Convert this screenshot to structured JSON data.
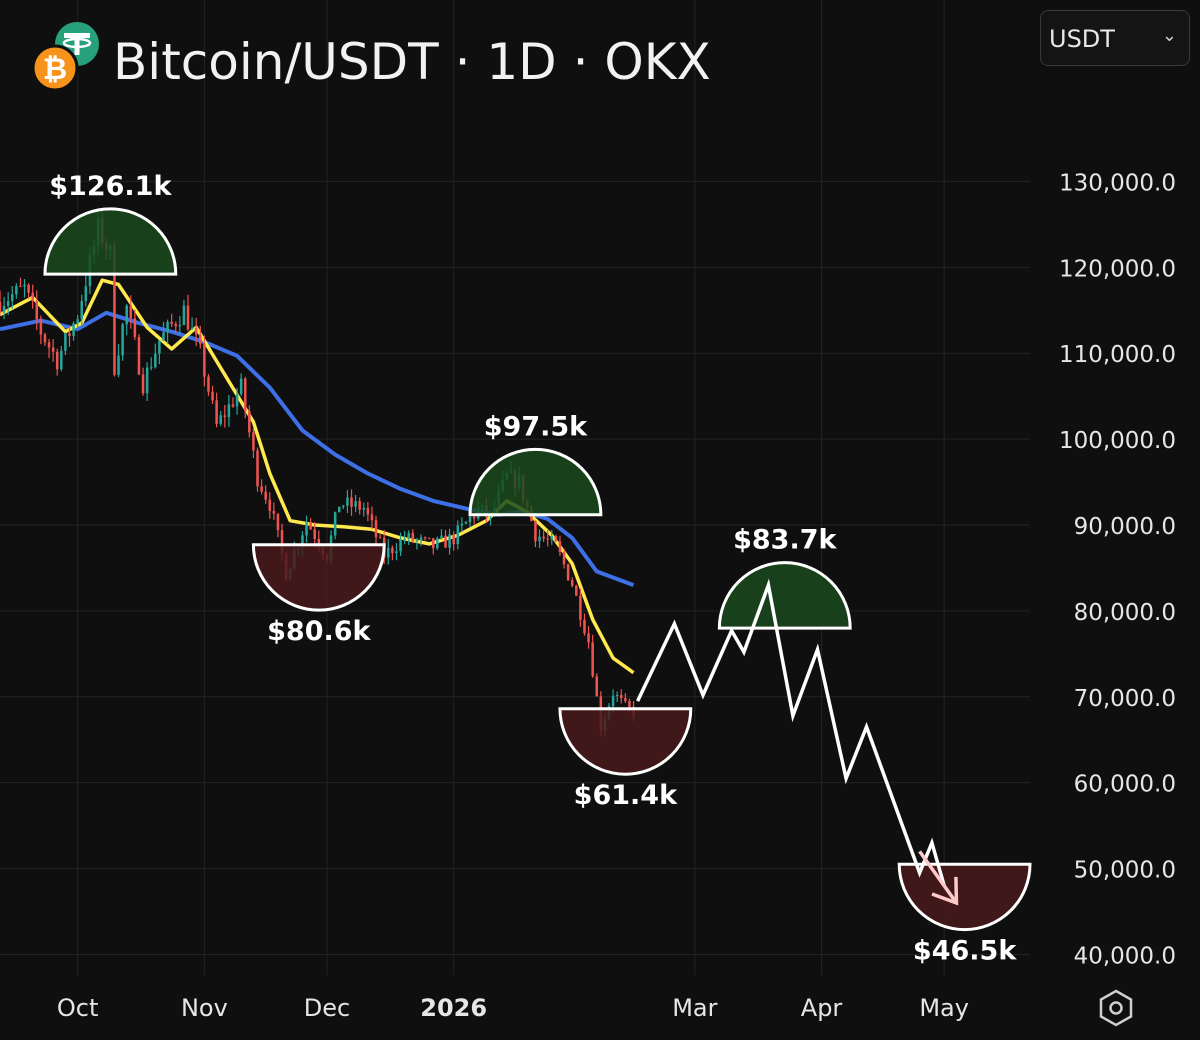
{
  "header": {
    "title": "Bitcoin/USDT · 1D · OKX",
    "currency_selector": {
      "value": "USDT"
    }
  },
  "chart_data": {
    "type": "candlestick",
    "title": "Bitcoin/USDT · 1D · OKX",
    "yticks": [
      "130,000.0",
      "120,000.0",
      "110,000.0",
      "100,000.0",
      "90,000.0",
      "80,000.0",
      "70,000.0",
      "60,000.0",
      "50,000.0",
      "40,000.0"
    ],
    "ytick_values": [
      130000,
      120000,
      110000,
      100000,
      90000,
      80000,
      70000,
      60000,
      50000,
      40000
    ],
    "xticks": [
      {
        "label": "Oct",
        "date": "2025-10-01",
        "bold": false
      },
      {
        "label": "Nov",
        "date": "2025-11-01",
        "bold": false
      },
      {
        "label": "Dec",
        "date": "2025-12-01",
        "bold": false
      },
      {
        "label": "2026",
        "date": "2026-01-01",
        "bold": true
      },
      {
        "label": "Mar",
        "date": "2026-03-01",
        "bold": false
      },
      {
        "label": "Apr",
        "date": "2026-04-01",
        "bold": false
      },
      {
        "label": "May",
        "date": "2026-05-01",
        "bold": false
      }
    ],
    "xlim": [
      "2025-09-12",
      "2026-05-22"
    ],
    "ylim": [
      34000,
      137500
    ],
    "colors": {
      "up": "#26a69a",
      "down": "#ef5350",
      "ma_fast": "#ffe94d",
      "ma_slow": "#3d6fe6",
      "top_zone": "#1a4a1d",
      "bottom_zone": "#4a1a1c",
      "projection": "#ffffff",
      "arrow": "#ffc9c9"
    },
    "price_path": [
      [
        "2025-09-12",
        116000
      ],
      [
        "2025-09-18",
        117500
      ],
      [
        "2025-09-22",
        112500
      ],
      [
        "2025-09-26",
        109200
      ],
      [
        "2025-10-01",
        114500
      ],
      [
        "2025-10-06",
        124500
      ],
      [
        "2025-10-09",
        121500
      ],
      [
        "2025-10-10",
        108500
      ],
      [
        "2025-10-13",
        115300
      ],
      [
        "2025-10-17",
        106500
      ],
      [
        "2025-10-21",
        111500
      ],
      [
        "2025-10-27",
        115000
      ],
      [
        "2025-10-31",
        110000
      ],
      [
        "2025-11-04",
        101500
      ],
      [
        "2025-11-10",
        106000
      ],
      [
        "2025-11-14",
        95500
      ],
      [
        "2025-11-17",
        92500
      ],
      [
        "2025-11-21",
        84500
      ],
      [
        "2025-11-26",
        90500
      ],
      [
        "2025-12-01",
        86500
      ],
      [
        "2025-12-04",
        92500
      ],
      [
        "2025-12-10",
        92000
      ],
      [
        "2025-12-15",
        86500
      ],
      [
        "2025-12-20",
        88500
      ],
      [
        "2025-12-27",
        87500
      ],
      [
        "2026-01-01",
        88500
      ],
      [
        "2026-01-07",
        91800
      ],
      [
        "2026-01-10",
        90800
      ],
      [
        "2026-01-14",
        95600
      ],
      [
        "2026-01-17",
        95000
      ],
      [
        "2026-01-21",
        89000
      ],
      [
        "2026-01-26",
        87500
      ],
      [
        "2026-01-30",
        83200
      ],
      [
        "2026-02-03",
        76500
      ],
      [
        "2026-02-06",
        66500
      ],
      [
        "2026-02-09",
        70500
      ],
      [
        "2026-02-12",
        68800
      ],
      [
        "2026-02-14",
        68200
      ]
    ],
    "candle_range": [
      "2025-09-12",
      "2026-02-14"
    ],
    "ma_fast": [
      [
        "2025-09-12",
        114500
      ],
      [
        "2025-09-20",
        116500
      ],
      [
        "2025-09-28",
        112500
      ],
      [
        "2025-10-02",
        113500
      ],
      [
        "2025-10-07",
        118500
      ],
      [
        "2025-10-11",
        118000
      ],
      [
        "2025-10-18",
        113000
      ],
      [
        "2025-10-24",
        110500
      ],
      [
        "2025-10-30",
        113000
      ],
      [
        "2025-11-06",
        107500
      ],
      [
        "2025-11-13",
        102000
      ],
      [
        "2025-11-17",
        96000
      ],
      [
        "2025-11-22",
        90500
      ],
      [
        "2025-11-28",
        90000
      ],
      [
        "2025-12-05",
        89800
      ],
      [
        "2025-12-12",
        89500
      ],
      [
        "2025-12-19",
        88500
      ],
      [
        "2025-12-26",
        87800
      ],
      [
        "2026-01-02",
        88800
      ],
      [
        "2026-01-09",
        90500
      ],
      [
        "2026-01-14",
        92800
      ],
      [
        "2026-01-19",
        91500
      ],
      [
        "2026-01-25",
        88800
      ],
      [
        "2026-01-30",
        85500
      ],
      [
        "2026-02-04",
        79000
      ],
      [
        "2026-02-09",
        74500
      ],
      [
        "2026-02-14",
        72800
      ]
    ],
    "ma_slow": [
      [
        "2025-09-12",
        112800
      ],
      [
        "2025-09-22",
        113800
      ],
      [
        "2025-10-01",
        112800
      ],
      [
        "2025-10-08",
        114700
      ],
      [
        "2025-10-16",
        113500
      ],
      [
        "2025-10-24",
        112500
      ],
      [
        "2025-11-01",
        111300
      ],
      [
        "2025-11-09",
        109700
      ],
      [
        "2025-11-17",
        106000
      ],
      [
        "2025-11-25",
        101000
      ],
      [
        "2025-12-03",
        98200
      ],
      [
        "2025-12-11",
        96000
      ],
      [
        "2025-12-19",
        94200
      ],
      [
        "2025-12-27",
        92800
      ],
      [
        "2026-01-05",
        91800
      ],
      [
        "2026-01-12",
        91200
      ],
      [
        "2026-01-18",
        91600
      ],
      [
        "2026-01-24",
        90700
      ],
      [
        "2026-01-30",
        88500
      ],
      [
        "2026-02-05",
        84600
      ],
      [
        "2026-02-14",
        83000
      ]
    ],
    "projection": [
      [
        "2026-02-15",
        69500
      ],
      [
        "2026-02-24",
        78500
      ],
      [
        "2026-03-03",
        70200
      ],
      [
        "2026-03-10",
        77700
      ],
      [
        "2026-03-13",
        75200
      ],
      [
        "2026-03-19",
        83000
      ],
      [
        "2026-03-25",
        67800
      ],
      [
        "2026-03-31",
        75500
      ],
      [
        "2026-04-07",
        60500
      ],
      [
        "2026-04-12",
        66500
      ],
      [
        "2026-04-25",
        49500
      ],
      [
        "2026-04-28",
        53000
      ],
      [
        "2026-05-01",
        48000
      ]
    ],
    "arrow": [
      [
        "2026-04-25",
        52000
      ],
      [
        "2026-05-04",
        46000
      ]
    ],
    "annotations": [
      {
        "label": "$126.1k",
        "value": 126100,
        "kind": "top",
        "date": "2025-10-09",
        "level": 119200,
        "halfwidth_days": 16,
        "label_pos": "above"
      },
      {
        "label": "$80.6k",
        "value": 80600,
        "kind": "bottom",
        "date": "2025-11-29",
        "level": 87700,
        "halfwidth_days": 16,
        "label_pos": "below"
      },
      {
        "label": "$97.5k",
        "value": 97500,
        "kind": "top",
        "date": "2026-01-21",
        "level": 91200,
        "halfwidth_days": 16,
        "label_pos": "above"
      },
      {
        "label": "$61.4k",
        "value": 61400,
        "kind": "bottom",
        "date": "2026-02-12",
        "level": 68600,
        "halfwidth_days": 16,
        "label_pos": "below"
      },
      {
        "label": "$83.7k",
        "value": 83700,
        "kind": "top",
        "date": "2026-03-23",
        "level": 78000,
        "halfwidth_days": 16,
        "label_pos": "above"
      },
      {
        "label": "$46.5k",
        "value": 46500,
        "kind": "bottom",
        "date": "2026-05-06",
        "level": 50500,
        "halfwidth_days": 16,
        "label_pos": "below"
      }
    ],
    "grid": true,
    "legend": "none"
  }
}
